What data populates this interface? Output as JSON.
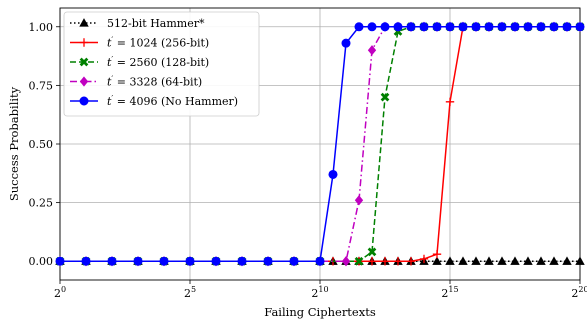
{
  "chart_data": {
    "type": "line",
    "xlabel": "Failing Ciphertexts",
    "ylabel": "Success Probability",
    "x_scale": "log2",
    "x_tick_labels": [
      {
        "base": "2",
        "exp": "0"
      },
      {
        "base": "2",
        "exp": "5"
      },
      {
        "base": "2",
        "exp": "10"
      },
      {
        "base": "2",
        "exp": "15"
      },
      {
        "base": "2",
        "exp": "20"
      }
    ],
    "y_ticks": [
      "0.00",
      "0.25",
      "0.50",
      "0.75",
      "1.00"
    ],
    "xlim": [
      1,
      1048576
    ],
    "ylim": [
      -0.08,
      1.08
    ],
    "grid": true,
    "legend_position": "top-left",
    "x": [
      1,
      2,
      4,
      8,
      16,
      32,
      64,
      128,
      256,
      512,
      1024,
      1448,
      2048,
      2896,
      4096,
      5793,
      8192,
      11585,
      16384,
      23170,
      32768,
      46341,
      65536,
      92682,
      131072,
      185364,
      262144,
      370728,
      524288,
      741455,
      1048576
    ],
    "series": [
      {
        "name": "512-bit Hammer*",
        "color": "#000000",
        "marker": "triangle",
        "dash": "dotted",
        "x": [
          1,
          2,
          4,
          8,
          16,
          32,
          64,
          128,
          256,
          512,
          1024,
          1448,
          2048,
          2896,
          4096,
          5793,
          8192,
          11585,
          16384,
          23170,
          32768,
          46341,
          65536,
          92682,
          131072,
          185364,
          262144,
          370728,
          524288,
          741455,
          1048576
        ],
        "values": [
          0,
          0,
          0,
          0,
          0,
          0,
          0,
          0,
          0,
          0,
          0,
          0,
          0,
          0,
          0,
          0,
          0,
          0,
          0,
          0,
          0,
          0,
          0,
          0,
          0,
          0,
          0,
          0,
          0,
          0,
          0
        ]
      },
      {
        "name_parts": {
          "var": "t",
          "rest": " = 1024 (256-bit)"
        },
        "color": "#ff0000",
        "marker": "plus",
        "dash": "solid",
        "x": [
          1,
          2,
          4,
          8,
          16,
          32,
          64,
          128,
          256,
          512,
          1024,
          1448,
          2048,
          2896,
          4096,
          5793,
          8192,
          11585,
          16384,
          23170,
          32768,
          46341,
          65536,
          92682,
          131072,
          185364,
          262144,
          370728,
          524288,
          741455,
          1048576
        ],
        "values": [
          0,
          0,
          0,
          0,
          0,
          0,
          0,
          0,
          0,
          0,
          0,
          0,
          0,
          0,
          0,
          0,
          0,
          0,
          0.01,
          0.03,
          0.68,
          1.0,
          1.0,
          1.0,
          1.0,
          1.0,
          1.0,
          1.0,
          1.0,
          1.0,
          1.0
        ]
      },
      {
        "name_parts": {
          "var": "t",
          "rest": " = 2560 (128-bit)"
        },
        "color": "#008000",
        "marker": "x",
        "dash": "dashed",
        "x": [
          1,
          2,
          4,
          8,
          16,
          32,
          64,
          128,
          256,
          512,
          1024,
          2896,
          4096,
          5793,
          8192,
          11585,
          16384,
          23170,
          32768,
          46341,
          65536,
          92682,
          131072,
          185364,
          262144,
          370728,
          524288,
          741455,
          1048576
        ],
        "values": [
          0,
          0,
          0,
          0,
          0,
          0,
          0,
          0,
          0,
          0,
          0,
          0,
          0.04,
          0.7,
          0.98,
          1.0,
          1.0,
          1.0,
          1.0,
          1.0,
          1.0,
          1.0,
          1.0,
          1.0,
          1.0,
          1.0,
          1.0,
          1.0,
          1.0
        ]
      },
      {
        "name_parts": {
          "var": "t",
          "rest": " = 3328 (64-bit)"
        },
        "color": "#c000c0",
        "marker": "diamond",
        "dash": "dashdot",
        "x": [
          1,
          2,
          4,
          8,
          16,
          32,
          64,
          128,
          256,
          512,
          1024,
          2048,
          2896,
          4096,
          5793,
          8192,
          11585,
          16384,
          23170,
          32768,
          46341,
          65536,
          92682,
          131072,
          185364,
          262144,
          370728,
          524288,
          741455,
          1048576
        ],
        "values": [
          0,
          0,
          0,
          0,
          0,
          0,
          0,
          0,
          0,
          0,
          0,
          0,
          0.26,
          0.9,
          1.0,
          1.0,
          1.0,
          1.0,
          1.0,
          1.0,
          1.0,
          1.0,
          1.0,
          1.0,
          1.0,
          1.0,
          1.0,
          1.0,
          1.0,
          1.0
        ]
      },
      {
        "name_parts": {
          "var": "t",
          "rest": " = 4096 (No Hammer)"
        },
        "color": "#0000ff",
        "marker": "circle",
        "dash": "solid",
        "x": [
          1,
          2,
          4,
          8,
          16,
          32,
          64,
          128,
          256,
          512,
          1024,
          1448,
          2048,
          2896,
          4096,
          5793,
          8192,
          11585,
          16384,
          23170,
          32768,
          46341,
          65536,
          92682,
          131072,
          185364,
          262144,
          370728,
          524288,
          741455,
          1048576
        ],
        "values": [
          0,
          0,
          0,
          0,
          0,
          0,
          0,
          0,
          0,
          0,
          0,
          0.37,
          0.93,
          1.0,
          1.0,
          1.0,
          1.0,
          1.0,
          1.0,
          1.0,
          1.0,
          1.0,
          1.0,
          1.0,
          1.0,
          1.0,
          1.0,
          1.0,
          1.0,
          1.0,
          1.0
        ]
      }
    ]
  }
}
